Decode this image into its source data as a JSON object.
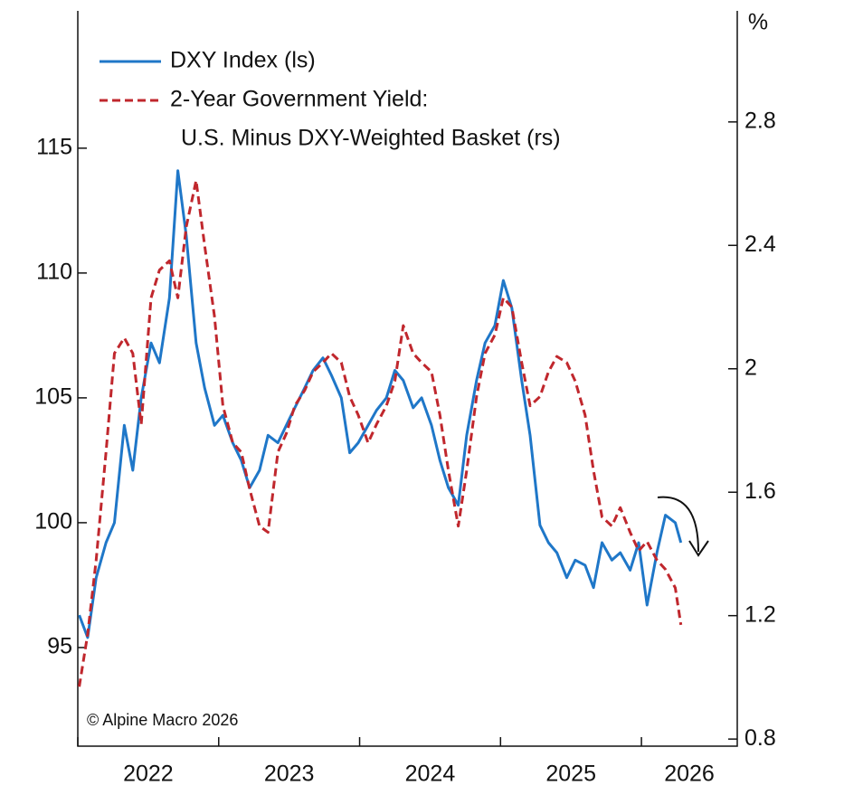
{
  "chart_data": {
    "type": "line",
    "annotation": "© Alpine Macro 2026",
    "y2_unit": "%",
    "x": [
      2022.01,
      2022.07,
      2022.13,
      2022.2,
      2022.26,
      2022.33,
      2022.39,
      2022.45,
      2022.52,
      2022.58,
      2022.65,
      2022.71,
      2022.77,
      2022.84,
      2022.9,
      2022.97,
      2023.03,
      2023.1,
      2023.16,
      2023.22,
      2023.29,
      2023.35,
      2023.42,
      2023.48,
      2023.54,
      2023.61,
      2023.67,
      2023.74,
      2023.8,
      2023.87,
      2023.93,
      2023.99,
      2024.06,
      2024.12,
      2024.19,
      2024.25,
      2024.31,
      2024.38,
      2024.44,
      2024.51,
      2024.57,
      2024.63,
      2024.7,
      2024.76,
      2024.83,
      2024.89,
      2024.96,
      2025.02,
      2025.08,
      2025.15,
      2025.21,
      2025.28,
      2025.34,
      2025.4,
      2025.47,
      2025.53,
      2025.6,
      2025.66,
      2025.72,
      2025.79,
      2025.85,
      2025.92,
      2025.98,
      2026.04,
      2026.11,
      2026.17,
      2026.24,
      2026.28
    ],
    "series": [
      {
        "name": [
          "DXY Index (ls)"
        ],
        "color": "#1f77c8",
        "dash": false,
        "axis": "y",
        "values": [
          96.3,
          95.4,
          97.8,
          99.2,
          100,
          103.9,
          102.1,
          105,
          107.2,
          106.4,
          109,
          114.1,
          111.5,
          107.2,
          105.4,
          103.9,
          104.3,
          103.2,
          102.5,
          101.4,
          102.1,
          103.5,
          103.2,
          103.9,
          104.6,
          105.4,
          106.1,
          106.6,
          105.9,
          105,
          102.8,
          103.2,
          103.9,
          104.5,
          105,
          106.1,
          105.7,
          104.6,
          105,
          103.9,
          102.5,
          101.4,
          100.7,
          103.5,
          105.7,
          107.2,
          107.9,
          109.7,
          108.6,
          105.7,
          103.5,
          99.9,
          99.2,
          98.8,
          97.8,
          98.5,
          98.3,
          97.4,
          99.2,
          98.5,
          98.8,
          98.1,
          99.2,
          96.7,
          98.8,
          100.3,
          100,
          99.2
        ]
      },
      {
        "name": [
          "2-Year Government Yield:",
          "U.S. Minus DXY-Weighted Basket (rs)"
        ],
        "color": "#c0272d",
        "dash": true,
        "axis": "y2",
        "values": [
          0.97,
          1.14,
          1.38,
          1.73,
          2.05,
          2.1,
          2.05,
          1.82,
          2.23,
          2.32,
          2.35,
          2.23,
          2.46,
          2.61,
          2.4,
          2.17,
          1.88,
          1.76,
          1.73,
          1.61,
          1.49,
          1.47,
          1.73,
          1.79,
          1.88,
          1.93,
          1.99,
          2.02,
          2.05,
          2.02,
          1.91,
          1.85,
          1.76,
          1.82,
          1.88,
          1.96,
          2.14,
          2.05,
          2.02,
          1.99,
          1.85,
          1.67,
          1.49,
          1.67,
          1.91,
          2.05,
          2.11,
          2.23,
          2.2,
          2.02,
          1.88,
          1.91,
          1.99,
          2.04,
          2.02,
          1.96,
          1.85,
          1.67,
          1.52,
          1.49,
          1.55,
          1.47,
          1.41,
          1.44,
          1.38,
          1.35,
          1.29,
          1.17
        ]
      }
    ],
    "xlim": [
      2022,
      2026.68
    ],
    "xticks": [
      {
        "value": 2022,
        "label": "2022"
      },
      {
        "value": 2023,
        "label": "2023"
      },
      {
        "value": 2024,
        "label": "2024"
      },
      {
        "value": 2025,
        "label": "2025"
      },
      {
        "value": 2026,
        "label": "2026"
      }
    ],
    "ylim": [
      91.05,
      120.5
    ],
    "yticks": [
      95,
      100,
      105,
      110,
      115
    ],
    "y2lim": [
      0.777,
      3.16
    ],
    "y2ticks": [
      0.8,
      1.2,
      1.6,
      2.0,
      2.4,
      2.8
    ],
    "legend": "upper left",
    "grid": false
  }
}
